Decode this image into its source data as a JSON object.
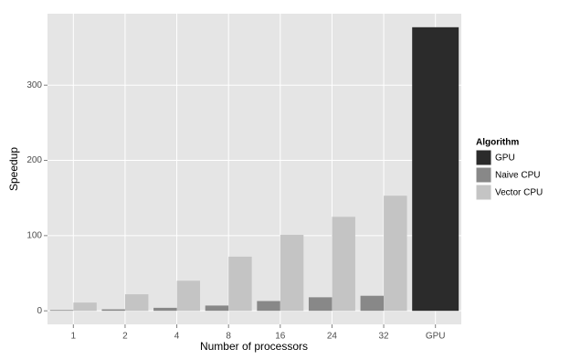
{
  "chart_data": {
    "type": "bar",
    "x_label": "Number of processors",
    "y_label": "Speedup",
    "categories": [
      "1",
      "2",
      "4",
      "8",
      "16",
      "24",
      "32",
      "GPU"
    ],
    "legend_title": "Algorithm",
    "legend_position": "right",
    "series": [
      {
        "name": "GPU",
        "color": "#2b2b2b",
        "values": [
          null,
          null,
          null,
          null,
          null,
          null,
          null,
          377
        ]
      },
      {
        "name": "Naive CPU",
        "color": "#888888",
        "values": [
          1,
          2,
          4,
          7,
          13,
          18,
          20,
          null
        ]
      },
      {
        "name": "Vector CPU",
        "color": "#c4c4c4",
        "values": [
          11,
          22,
          40,
          72,
          101,
          125,
          153,
          null
        ]
      }
    ],
    "ylim": [
      -18,
      395
    ],
    "yticks": [
      0,
      100,
      200,
      300
    ],
    "grid": true
  }
}
